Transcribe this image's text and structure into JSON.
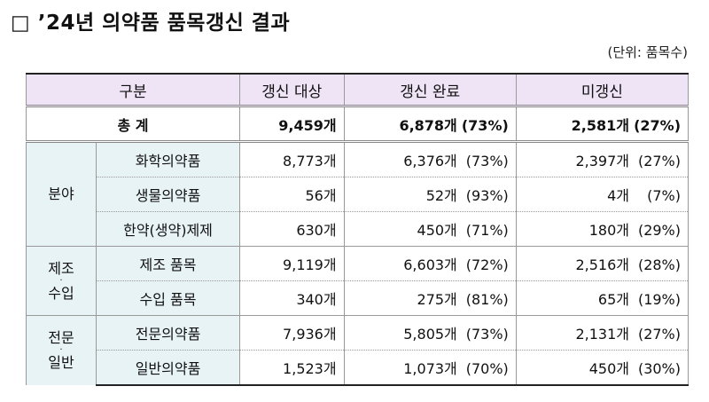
{
  "title": "□ ’24년 의약품 품목갱신 결과",
  "unit": "(단위: 품목수)",
  "headers": [
    "구분",
    "갱신 대상",
    "갱신 완료",
    "미갱신"
  ],
  "total": {
    "label": "총 계",
    "target": "9,459개",
    "done": "6,878개",
    "done_pct": "(73%)",
    "not": "2,581개",
    "not_pct": "(27%)"
  },
  "groups": [
    {
      "label_top": "분야",
      "label_bottom": "",
      "rows": [
        {
          "label": "화학의약품",
          "target": "8,773개",
          "done": "6,376개",
          "done_pct": "(73%)",
          "not": "2,397개",
          "not_pct": "(27%)"
        },
        {
          "label": "생물의약품",
          "target": "56개",
          "done": "52개",
          "done_pct": "(93%)",
          "not": "4개",
          "not_pct": "(7%)"
        },
        {
          "label": "한약(생약)제제",
          "target": "630개",
          "done": "450개",
          "done_pct": "(71%)",
          "not": "180개",
          "not_pct": "(29%)"
        }
      ]
    },
    {
      "label_top": "제조",
      "label_bottom": "수입",
      "rows": [
        {
          "label": "제조 품목",
          "target": "9,119개",
          "done": "6,603개",
          "done_pct": "(72%)",
          "not": "2,516개",
          "not_pct": "(28%)"
        },
        {
          "label": "수입 품목",
          "target": "340개",
          "done": "275개",
          "done_pct": "(81%)",
          "not": "65개",
          "not_pct": "(19%)"
        }
      ]
    },
    {
      "label_top": "전문",
      "label_bottom": "일반",
      "rows": [
        {
          "label": "전문의약품",
          "target": "7,936개",
          "done": "5,805개",
          "done_pct": "(73%)",
          "not": "2,131개",
          "not_pct": "(27%)"
        },
        {
          "label": "일반의약품",
          "target": "1,523개",
          "done": "1,073개",
          "done_pct": "(70%)",
          "not": "450개",
          "not_pct": "(30%)"
        }
      ]
    }
  ],
  "colors": {
    "header_bg": "#efe3f6",
    "category_bg": "#e8f3f6"
  }
}
